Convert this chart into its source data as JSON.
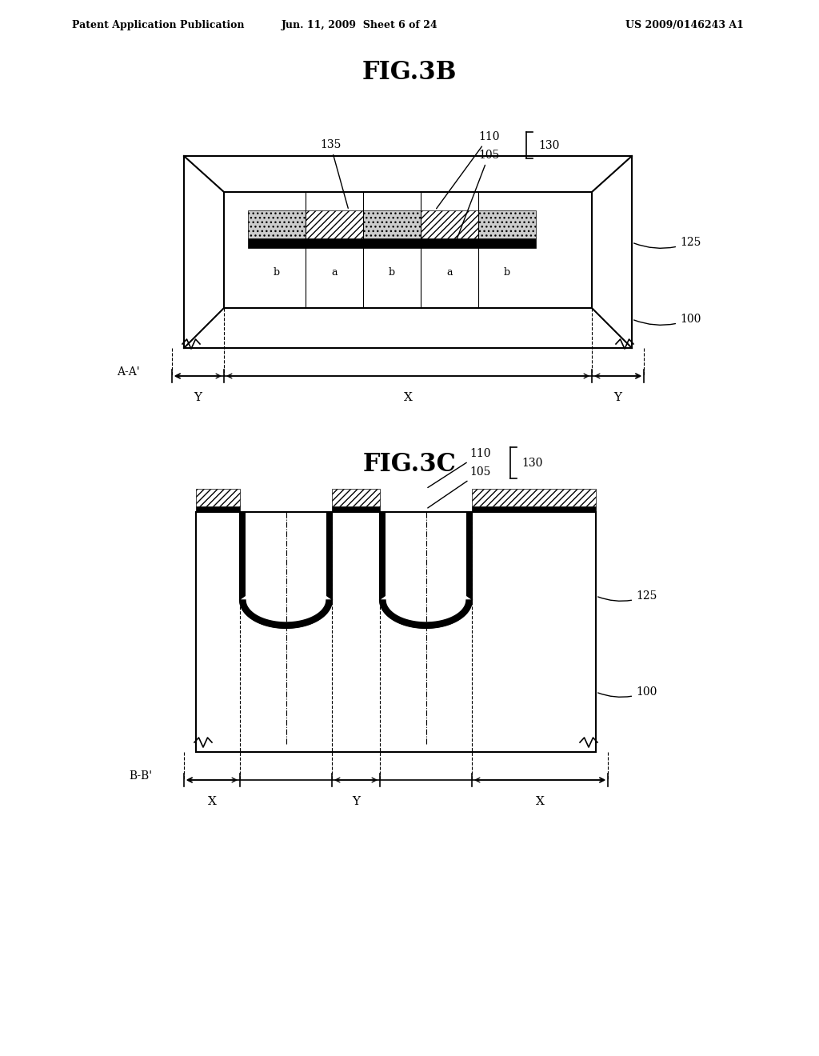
{
  "header_left": "Patent Application Publication",
  "header_mid": "Jun. 11, 2009  Sheet 6 of 24",
  "header_right": "US 2009/0146243 A1",
  "fig3b_title": "FIG.3B",
  "fig3c_title": "FIG.3C",
  "background": "#ffffff",
  "line_color": "#000000",
  "hatch_color": "#000000",
  "label_color": "#000000"
}
